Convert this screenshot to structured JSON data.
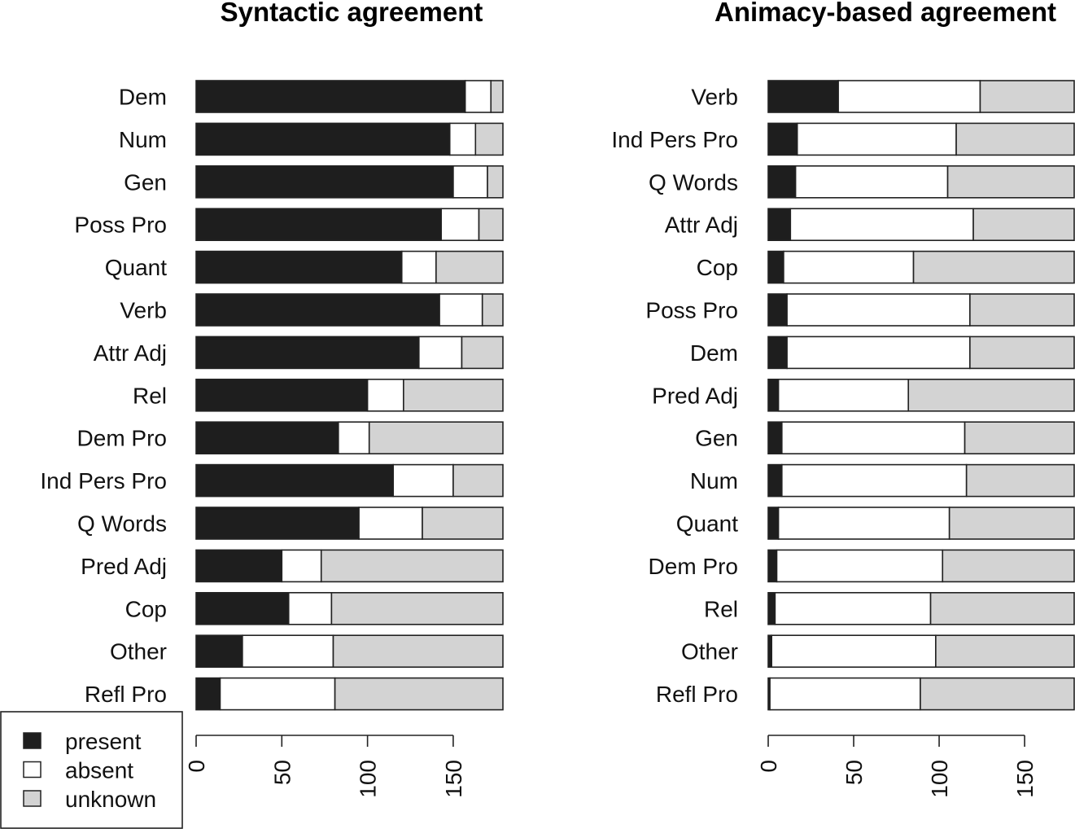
{
  "colors": {
    "present": "#1e1e1e",
    "absent": "#ffffff",
    "unknown": "#d3d3d3",
    "stroke": "#222222"
  },
  "legend": {
    "placement": "bottom-left",
    "entries": [
      {
        "key": "present",
        "label": "present"
      },
      {
        "key": "absent",
        "label": "absent"
      },
      {
        "key": "unknown",
        "label": "unknown"
      }
    ]
  },
  "chart_data": [
    {
      "type": "bar",
      "orientation": "horizontal",
      "stacked": true,
      "title": "Syntactic agreement",
      "xlim": [
        0,
        180
      ],
      "xticks": [
        0,
        50,
        100,
        150
      ],
      "grid": false,
      "categories": [
        "Dem",
        "Num",
        "Gen",
        "Poss Pro",
        "Quant",
        "Verb",
        "Attr Adj",
        "Rel",
        "Dem Pro",
        "Ind Pers Pro",
        "Q Words",
        "Pred Adj",
        "Cop",
        "Other",
        "Refl Pro"
      ],
      "series": [
        {
          "name": "present",
          "values": [
            157,
            148,
            150,
            143,
            120,
            142,
            130,
            100,
            83,
            115,
            95,
            50,
            54,
            27,
            14
          ]
        },
        {
          "name": "absent",
          "values": [
            15,
            15,
            20,
            22,
            20,
            25,
            25,
            21,
            18,
            35,
            37,
            23,
            25,
            53,
            67
          ]
        },
        {
          "name": "unknown",
          "values": [
            7,
            16,
            9,
            14,
            39,
            12,
            24,
            58,
            78,
            29,
            47,
            106,
            100,
            99,
            98
          ]
        }
      ]
    },
    {
      "type": "bar",
      "orientation": "horizontal",
      "stacked": true,
      "title": "Animacy-based agreement",
      "xlim": [
        0,
        180
      ],
      "xticks": [
        0,
        50,
        100,
        150
      ],
      "grid": false,
      "categories": [
        "Verb",
        "Ind Pers Pro",
        "Q Words",
        "Attr Adj",
        "Cop",
        "Poss Pro",
        "Dem",
        "Pred Adj",
        "Gen",
        "Num",
        "Quant",
        "Dem Pro",
        "Rel",
        "Other",
        "Refl Pro"
      ],
      "series": [
        {
          "name": "present",
          "values": [
            41,
            17,
            16,
            13,
            9,
            11,
            11,
            6,
            8,
            8,
            6,
            5,
            4,
            2,
            1
          ]
        },
        {
          "name": "absent",
          "values": [
            83,
            93,
            89,
            107,
            76,
            107,
            107,
            76,
            107,
            108,
            100,
            97,
            91,
            96,
            88
          ]
        },
        {
          "name": "unknown",
          "values": [
            55,
            69,
            74,
            59,
            94,
            61,
            61,
            97,
            64,
            63,
            73,
            77,
            84,
            81,
            90
          ]
        }
      ]
    }
  ]
}
